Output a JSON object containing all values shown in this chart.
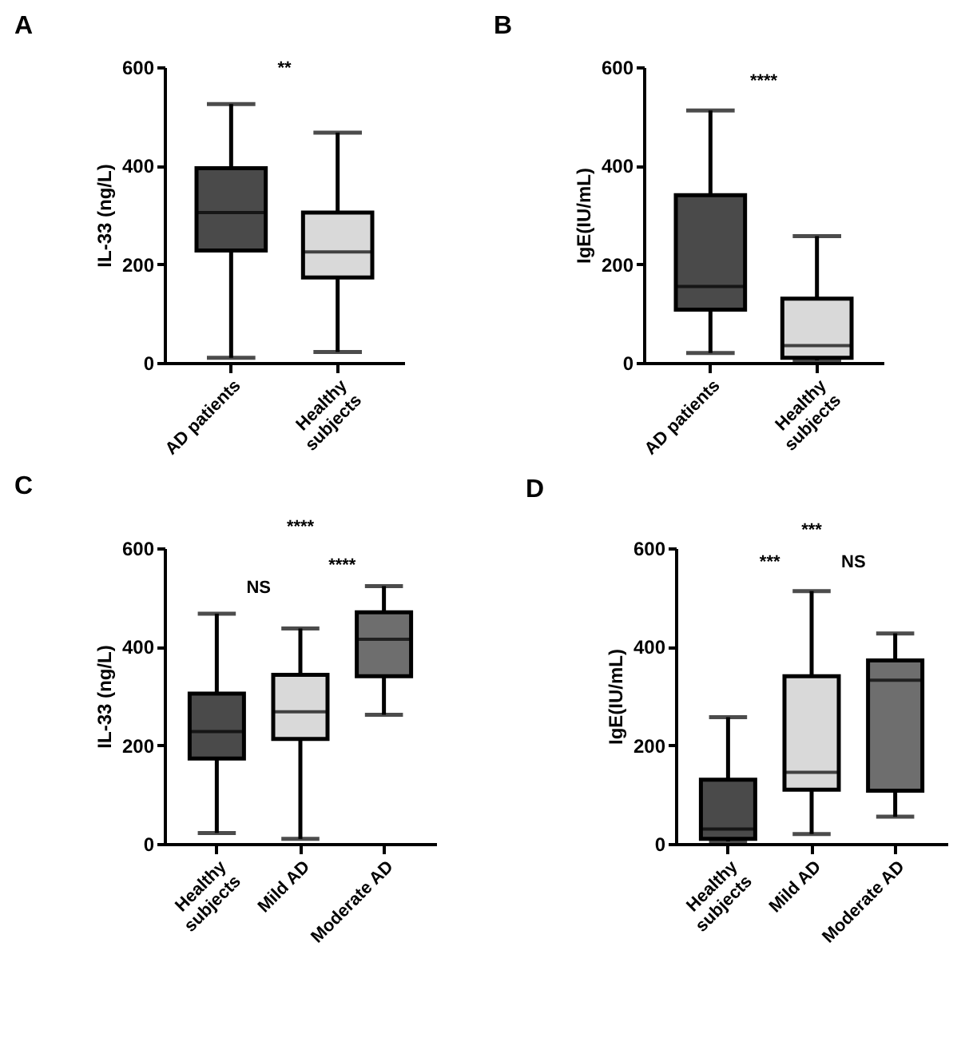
{
  "chart_data": [
    {
      "type": "box",
      "title": "A",
      "ylabel": "IL-33 (ng/L)",
      "categories": [
        "AD patients",
        "Healthy subjects"
      ],
      "colors": [
        "#4a4a4a",
        "#d9d9d9"
      ],
      "ylim": [
        0,
        600
      ],
      "yticks": [
        0,
        200,
        400,
        600
      ],
      "boxes": [
        {
          "low": 10,
          "q1": 228,
          "median": 305,
          "q3": 395,
          "high": 525
        },
        {
          "low": 22,
          "q1": 173,
          "median": 225,
          "q3": 305,
          "high": 467
        }
      ],
      "annotations": [
        "**"
      ]
    },
    {
      "type": "box",
      "title": "B",
      "ylabel": "IgE(IU/mL)",
      "categories": [
        "AD patients",
        "Healthy subjects"
      ],
      "colors": [
        "#4a4a4a",
        "#d9d9d9"
      ],
      "ylim": [
        0,
        600
      ],
      "yticks": [
        0,
        200,
        400,
        600
      ],
      "boxes": [
        {
          "low": 20,
          "q1": 108,
          "median": 155,
          "q3": 340,
          "high": 512
        },
        {
          "low": 5,
          "q1": 10,
          "median": 35,
          "q3": 130,
          "high": 257
        }
      ],
      "annotations": [
        "****"
      ]
    },
    {
      "type": "box",
      "title": "C",
      "ylabel": "IL-33 (ng/L)",
      "categories": [
        "Healthy subjects",
        "Mild AD",
        "Moderate AD"
      ],
      "colors": [
        "#4a4a4a",
        "#d9d9d9",
        "#6e6e6e"
      ],
      "ylim": [
        0,
        600
      ],
      "yticks": [
        0,
        200,
        400,
        600
      ],
      "boxes": [
        {
          "low": 22,
          "q1": 173,
          "median": 228,
          "q3": 305,
          "high": 467
        },
        {
          "low": 10,
          "q1": 213,
          "median": 268,
          "q3": 343,
          "high": 437
        },
        {
          "low": 262,
          "q1": 340,
          "median": 415,
          "q3": 470,
          "high": 523
        }
      ],
      "annotations": [
        "****",
        "****",
        "NS"
      ]
    },
    {
      "type": "box",
      "title": "D",
      "ylabel": "IgE(IU/mL)",
      "categories": [
        "Healthy subjects",
        "Mild AD",
        "Moderate AD"
      ],
      "colors": [
        "#4a4a4a",
        "#d9d9d9",
        "#6e6e6e"
      ],
      "ylim": [
        0,
        600
      ],
      "yticks": [
        0,
        200,
        400,
        600
      ],
      "boxes": [
        {
          "low": 5,
          "q1": 10,
          "median": 30,
          "q3": 130,
          "high": 257
        },
        {
          "low": 20,
          "q1": 110,
          "median": 145,
          "q3": 340,
          "high": 513
        },
        {
          "low": 55,
          "q1": 108,
          "median": 332,
          "q3": 372,
          "high": 427
        }
      ],
      "annotations": [
        "***",
        "***",
        "NS"
      ]
    }
  ]
}
